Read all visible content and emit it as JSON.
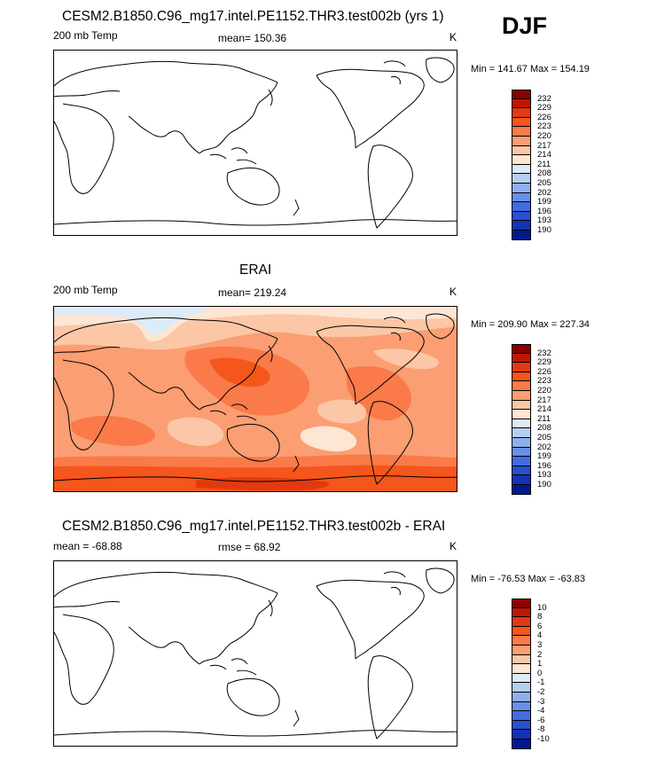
{
  "season": "DJF",
  "panels": [
    {
      "title": "CESM2.B1850.C96_mg17.intel.PE1152.THR3.test002b (yrs 1)",
      "left_label": "200 mb Temp",
      "center_label": "mean= 150.36",
      "units": "K",
      "minmax": "Min = 141.67 Max = 154.19",
      "colorbar": {
        "labels": [
          "232",
          "229",
          "226",
          "223",
          "220",
          "217",
          "214",
          "211",
          "208",
          "205",
          "202",
          "199",
          "196",
          "193",
          "190"
        ],
        "colors": [
          "#8b0000",
          "#c01500",
          "#e23a10",
          "#f4561c",
          "#fa7a4a",
          "#fb9e73",
          "#fcc7a6",
          "#fde6d3",
          "#ddeaf7",
          "#b5cff0",
          "#8db0ec",
          "#6a8fe6",
          "#426de0",
          "#2a4fd0",
          "#1232b8",
          "#001a8e"
        ]
      }
    },
    {
      "title": "ERAI",
      "left_label": "200 mb Temp",
      "center_label": "mean= 219.24",
      "units": "K",
      "minmax": "Min = 209.90 Max = 227.34",
      "colorbar": {
        "labels": [
          "232",
          "229",
          "226",
          "223",
          "220",
          "217",
          "214",
          "211",
          "208",
          "205",
          "202",
          "199",
          "196",
          "193",
          "190"
        ],
        "colors": [
          "#8b0000",
          "#c01500",
          "#e23a10",
          "#f4561c",
          "#fa7a4a",
          "#fb9e73",
          "#fcc7a6",
          "#fde6d3",
          "#ddeaf7",
          "#b5cff0",
          "#8db0ec",
          "#6a8fe6",
          "#426de0",
          "#2a4fd0",
          "#1232b8",
          "#001a8e"
        ]
      }
    },
    {
      "title": "CESM2.B1850.C96_mg17.intel.PE1152.THR3.test002b - ERAI",
      "left_label": "mean = -68.88",
      "center_label": "rmse =  68.92",
      "units": "K",
      "minmax": "Min = -76.53 Max = -63.83",
      "colorbar": {
        "labels": [
          "10",
          "8",
          "6",
          "4",
          "3",
          "2",
          "1",
          "0",
          "-1",
          "-2",
          "-3",
          "-4",
          "-6",
          "-8",
          "-10"
        ],
        "colors": [
          "#8b0000",
          "#c01500",
          "#e23a10",
          "#f4561c",
          "#fa7a4a",
          "#fb9e73",
          "#fcc7a6",
          "#fde6d3",
          "#ddeaf7",
          "#b5cff0",
          "#8db0ec",
          "#6a8fe6",
          "#426de0",
          "#2a4fd0",
          "#1232b8",
          "#001a8e"
        ]
      }
    }
  ]
}
